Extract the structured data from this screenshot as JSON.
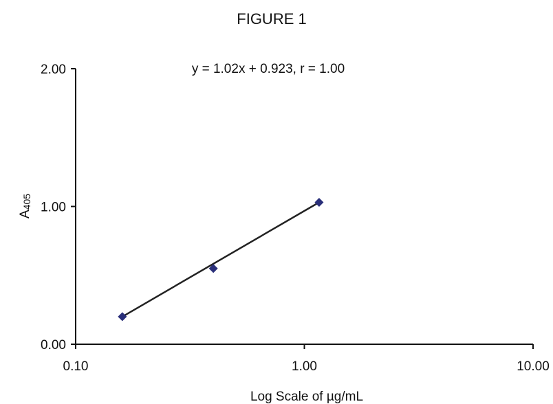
{
  "chart_data": {
    "type": "scatter",
    "title": "FIGURE 1",
    "annotation": "y = 1.02x + 0.923, r = 1.00",
    "xlabel": "Log Scale of µg/mL",
    "ylabel_main": "A",
    "ylabel_sub": "405",
    "x_scale": "log",
    "xlim": [
      0.1,
      10
    ],
    "ylim": [
      0,
      2
    ],
    "x_ticks": [
      {
        "value": 0.1,
        "label": "0.10"
      },
      {
        "value": 1,
        "label": "1.00"
      },
      {
        "value": 10,
        "label": "10.00"
      }
    ],
    "y_ticks": [
      {
        "value": 0,
        "label": "0.00"
      },
      {
        "value": 1,
        "label": "1.00"
      },
      {
        "value": 2,
        "label": "2.00"
      }
    ],
    "points": [
      {
        "x": 0.16,
        "y": 0.2
      },
      {
        "x": 0.4,
        "y": 0.55
      },
      {
        "x": 1.16,
        "y": 1.03
      }
    ],
    "trendline": {
      "x": [
        0.16,
        1.16
      ],
      "y": [
        0.2,
        1.03
      ]
    },
    "grid": false,
    "marker_color": "#2a2f7a",
    "line_color": "#222222"
  }
}
